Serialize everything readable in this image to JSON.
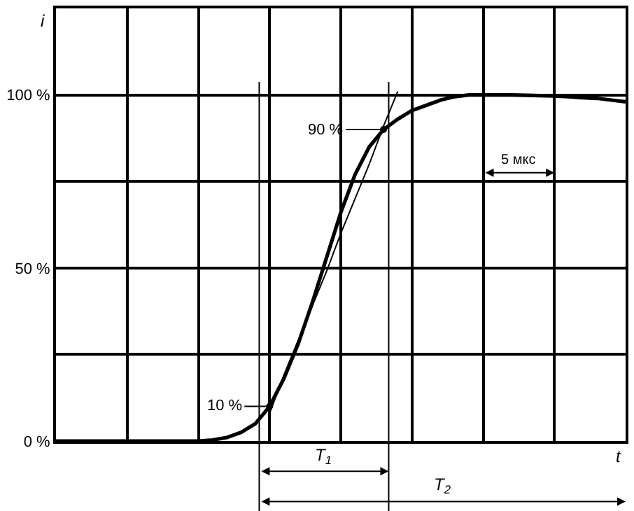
{
  "chart_data": {
    "type": "line",
    "xlabel": "t",
    "ylabel": "i",
    "categories": [
      null,
      null,
      null,
      null,
      null,
      null,
      null,
      null,
      null,
      null,
      null,
      null,
      null,
      null,
      null,
      null,
      null,
      null,
      null,
      null,
      null,
      null,
      null,
      null,
      null,
      null,
      null,
      null,
      null,
      null,
      null,
      null,
      null,
      null,
      null,
      null,
      null,
      null,
      null,
      null,
      null
    ],
    "ylim": [
      0,
      125
    ],
    "yticks": [
      {
        "value": 0,
        "label": "0 %"
      },
      {
        "value": 25,
        "label": null
      },
      {
        "value": 50,
        "label": "50 %"
      },
      {
        "value": 75,
        "label": null
      },
      {
        "value": 100,
        "label": "100 %"
      },
      {
        "value": 125,
        "label": null
      }
    ],
    "series": [
      {
        "color": "#000000",
        "values": [
          0,
          0,
          0,
          0,
          0,
          0,
          0,
          0,
          0,
          0,
          0,
          0.3,
          1,
          2.5,
          5,
          10,
          18,
          28,
          40,
          53,
          66,
          77,
          85,
          90,
          93,
          95.5,
          97,
          98.5,
          99.5,
          100,
          100,
          100,
          100,
          99.9,
          99.8,
          99.7,
          99.5,
          99.2,
          99,
          98.5,
          98
        ]
      },
      {
        "color": "#000000",
        "values": [
          null,
          null,
          null,
          null,
          null,
          null,
          null,
          null,
          null,
          null,
          null,
          null,
          null,
          null,
          null,
          8,
          19,
          29,
          39,
          49,
          60,
          70,
          80,
          91,
          101,
          null,
          null,
          null,
          null,
          null,
          null,
          null,
          null,
          null,
          null,
          null,
          null,
          null,
          null,
          null,
          null
        ]
      }
    ],
    "annotations": [
      "10 %",
      "90 %",
      "5 мкс",
      "T$_{1}$",
      "T$_{2}$"
    ],
    "grid": true,
    "marker": "none",
    "line_style": "solid"
  }
}
